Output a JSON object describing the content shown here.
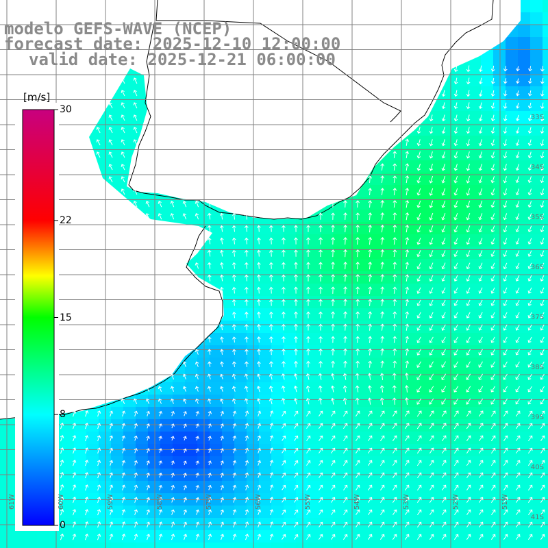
{
  "title": {
    "line1": "modelo GEFS-WAVE (NCEP)",
    "line2": "forecast date: 2025-12-10 12:00:00",
    "line3": "valid date: 2025-12-21 06:00:00"
  },
  "colorbar": {
    "unit": "[m/s]",
    "min": 0,
    "max": 30,
    "ticks": [
      {
        "label": "30",
        "value": 30
      },
      {
        "label": "22",
        "value": 22
      },
      {
        "label": "15",
        "value": 15
      },
      {
        "label": "8",
        "value": 8
      },
      {
        "label": "0",
        "value": 0
      }
    ],
    "stops": [
      {
        "value": 0,
        "color": "#0000ff"
      },
      {
        "value": 8,
        "color": "#00ffff"
      },
      {
        "value": 15,
        "color": "#00ff00"
      },
      {
        "value": 18,
        "color": "#ffff00"
      },
      {
        "value": 22,
        "color": "#ff0000"
      },
      {
        "value": 30,
        "color": "#c8007f"
      }
    ]
  },
  "lat_labels": [
    "33S",
    "34S",
    "35S",
    "36S",
    "37S",
    "38S",
    "39S",
    "40S",
    "41S"
  ],
  "lon_labels": [
    "61W",
    "60W",
    "59W",
    "58W",
    "57W",
    "56W",
    "55W",
    "54W",
    "53W",
    "52W",
    "51W"
  ],
  "colors": {
    "land": "#ffffff",
    "grid": "#808080",
    "coast": "#000000",
    "arrows": "#ffffff"
  }
}
